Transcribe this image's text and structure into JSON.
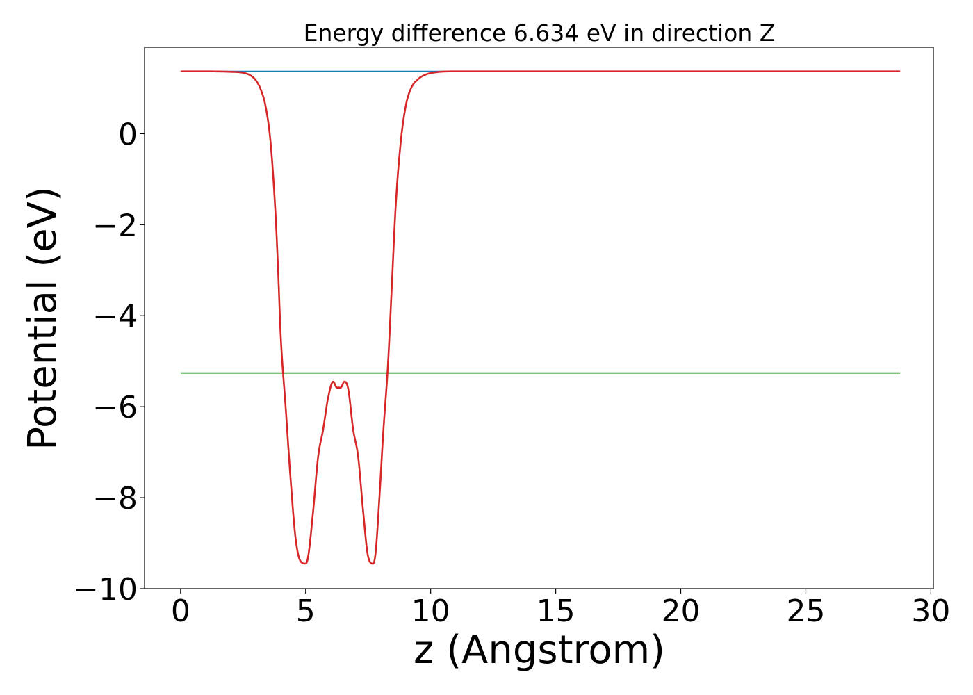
{
  "chart_data": {
    "type": "line",
    "title": "Energy difference 6.634 eV in direction Z",
    "xlabel": "z (Angstrom)",
    "ylabel": "Potential (eV)",
    "xlim": [
      -1.44,
      30.1
    ],
    "ylim": [
      -10,
      1.9
    ],
    "x_ticks": [
      0,
      5,
      10,
      15,
      20,
      25,
      30
    ],
    "x_tick_labels": [
      "0",
      "5",
      "10",
      "15",
      "20",
      "25",
      "30"
    ],
    "y_ticks": [
      0,
      -2,
      -4,
      -6,
      -8,
      -10
    ],
    "y_tick_labels": [
      "0",
      "−2",
      "−4",
      "−6",
      "−8",
      "−10"
    ],
    "grid": false,
    "series": [
      {
        "color": "#1f77b4",
        "x": [
          0,
          28.77
        ],
        "y": [
          1.37,
          1.37
        ]
      },
      {
        "color": "#2ca02c",
        "x": [
          0,
          28.77
        ],
        "y": [
          -5.26,
          -5.26
        ]
      },
      {
        "color": "#d62728",
        "x": [
          0,
          1.0,
          2.0,
          2.5,
          2.8,
          3.0,
          3.2,
          3.4,
          3.6,
          3.8,
          3.9,
          4.0,
          4.2,
          4.4,
          4.6,
          4.8,
          5.0,
          5.1,
          5.3,
          5.5,
          5.7,
          5.9,
          6.1,
          6.25,
          6.4,
          6.55,
          6.7,
          6.9,
          7.1,
          7.3,
          7.5,
          7.7,
          7.8,
          7.95,
          8.1,
          8.3,
          8.45,
          8.6,
          8.8,
          9.0,
          9.2,
          9.5,
          9.8,
          10.2,
          11.0,
          12.0,
          15.0,
          20.0,
          25.0,
          28.77
        ],
        "y": [
          1.37,
          1.37,
          1.36,
          1.34,
          1.28,
          1.18,
          0.98,
          0.6,
          -0.2,
          -1.8,
          -3.0,
          -4.4,
          -6.0,
          -7.6,
          -8.9,
          -9.4,
          -9.45,
          -9.3,
          -8.3,
          -7.1,
          -6.5,
          -5.8,
          -5.45,
          -5.58,
          -5.58,
          -5.45,
          -5.6,
          -6.5,
          -7.1,
          -8.3,
          -9.3,
          -9.45,
          -9.2,
          -8.0,
          -6.6,
          -5.0,
          -3.3,
          -1.6,
          -0.2,
          0.6,
          0.98,
          1.2,
          1.3,
          1.35,
          1.37,
          1.37,
          1.37,
          1.37,
          1.37,
          1.37
        ]
      }
    ]
  }
}
